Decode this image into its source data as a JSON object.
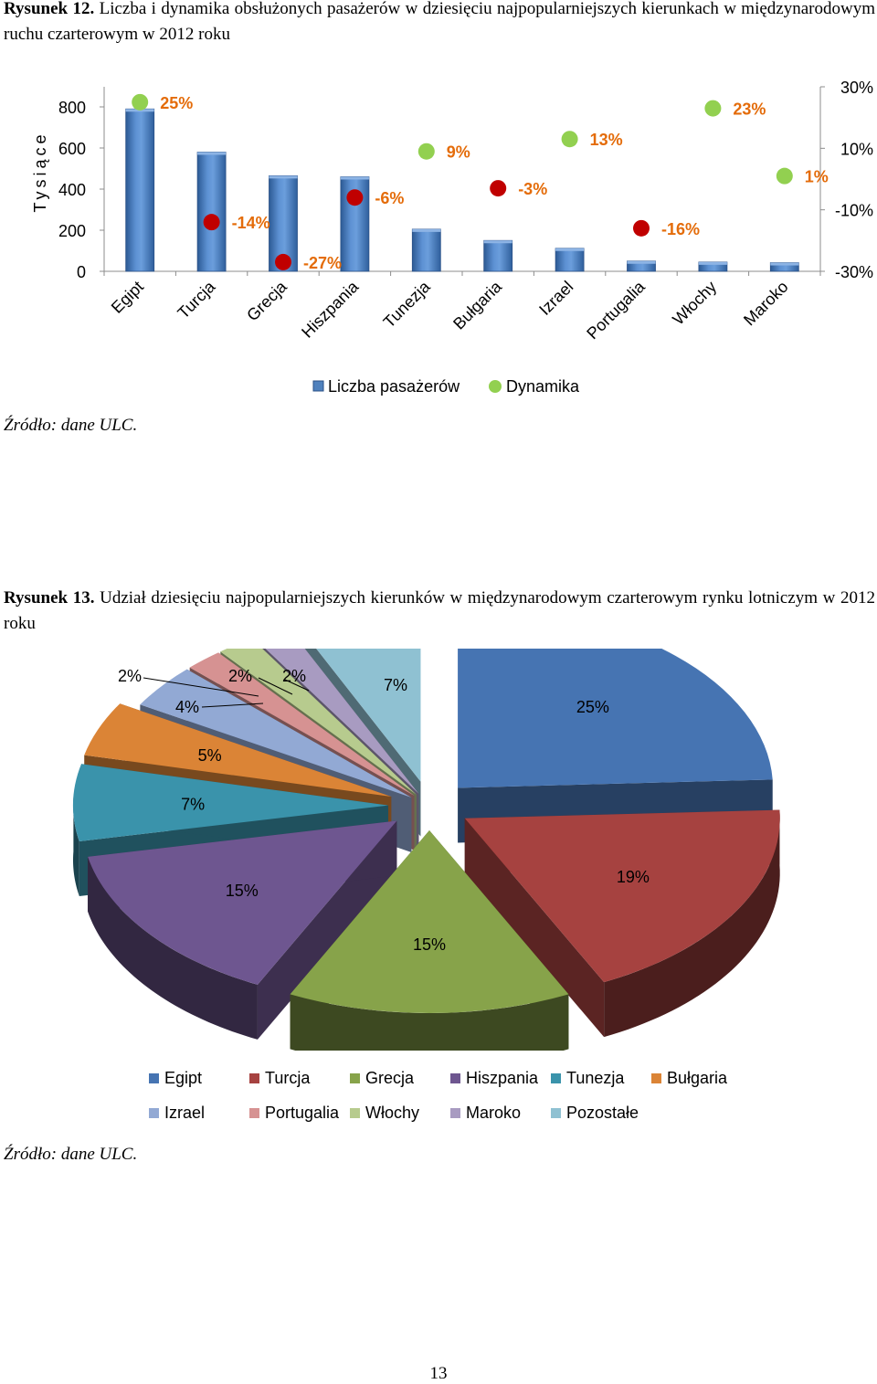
{
  "figure12": {
    "title_label": "Rysunek 12.",
    "title_text": "Liczba i dynamika obsłużonych pasażerów w dziesięciu najpopularniejszych kierunkach w międzynarodowym ruchu czarterowym w 2012 roku",
    "source": "Źródło: dane ULC."
  },
  "figure13": {
    "title_label": "Rysunek 13.",
    "title_text": "Udział dziesięciu najpopularniejszych kierunków w międzynarodowym czarterowym rynku lotniczym w 2012 roku",
    "source": "Źródło: dane ULC."
  },
  "page_number": "13",
  "colors": {
    "bar_blue": "#4F81BD",
    "growth_green": "#92D050",
    "decline_red": "#C00000",
    "dynamics_label_orange": "#E46C0A"
  },
  "chart_data": [
    {
      "type": "bar",
      "categories": [
        "Egipt",
        "Turcja",
        "Grecja",
        "Hiszpania",
        "Tunezja",
        "Bułgaria",
        "Izrael",
        "Portugalia",
        "Włochy",
        "Maroko"
      ],
      "series": [
        {
          "name": "Liczba pasażerów",
          "axis": "left",
          "values": [
            790,
            580,
            465,
            460,
            205,
            150,
            112,
            50,
            45,
            42
          ]
        },
        {
          "name": "Dynamika",
          "axis": "right",
          "type": "scatter",
          "values": [
            25,
            -14,
            -27,
            -6,
            9,
            -3,
            13,
            -16,
            23,
            1
          ],
          "labels": [
            "25%",
            "-14%",
            "-27%",
            "-6%",
            "9%",
            "-3%",
            "13%",
            "-16%",
            "23%",
            "1%"
          ]
        }
      ],
      "ylabel": "Tysiące",
      "ylim": [
        0,
        800
      ],
      "yticks": [
        "0",
        "200",
        "400",
        "600",
        "800"
      ],
      "y2lim": [
        -30,
        30
      ],
      "y2ticks": [
        "-30%",
        "-10%",
        "10%",
        "30%"
      ],
      "legend": [
        "Liczba pasażerów",
        "Dynamika"
      ],
      "legend_position": "bottom"
    },
    {
      "type": "pie",
      "style": "3d-exploded",
      "labels": [
        "Egipt",
        "Turcja",
        "Grecja",
        "Hiszpania",
        "Tunezja",
        "Bułgaria",
        "Izrael",
        "Portugalia",
        "Włochy",
        "Maroko",
        "Pozostałe"
      ],
      "values": [
        25,
        19,
        15,
        15,
        7,
        5,
        4,
        2,
        2,
        2,
        7
      ],
      "value_labels": [
        "25%",
        "19%",
        "15%",
        "15%",
        "7%",
        "5%",
        "4%",
        "2%",
        "2%",
        "2%",
        "7%"
      ],
      "colors": [
        "#4674B2",
        "#A64240",
        "#87A34A",
        "#6E5690",
        "#3A93AB",
        "#DB8436",
        "#92A9D4",
        "#D69292",
        "#B7CB8E",
        "#A89BC1",
        "#8FC1D2"
      ],
      "legend_position": "bottom"
    }
  ]
}
